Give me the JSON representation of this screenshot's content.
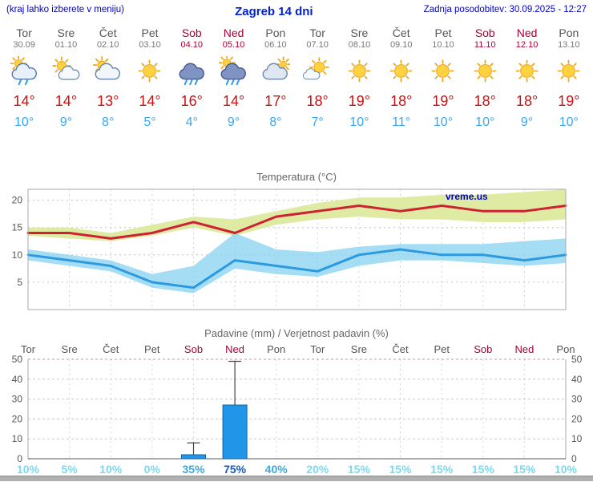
{
  "header": {
    "left_note": "(kraj lahko izberete v meniju)",
    "title": "Zagreb 14 dni",
    "updated_label": "Zadnja posodobitev: 30.09.2025 - 12:27"
  },
  "colors": {
    "link_blue": "#0000cc",
    "weekend_red": "#aa0033",
    "tmax_red": "#cc1111",
    "tmin_blue": "#3aa7f0",
    "line_red": "#cc2233",
    "line_blue": "#2d9ae0",
    "band_green": "#dce99b",
    "band_blue": "#86d2f0",
    "bar_blue": "#2196e8",
    "prob_low": "#7bd9ef",
    "prob_mid": "#3fa8dc",
    "prob_high": "#1559bb"
  },
  "days": [
    {
      "name": "Tor",
      "date": "30.09",
      "weekend": false,
      "icon": "light-rain",
      "tmax": "14°",
      "tmin": "10°"
    },
    {
      "name": "Sre",
      "date": "01.10",
      "weekend": false,
      "icon": "partly-cloudy",
      "tmax": "14°",
      "tmin": "9°"
    },
    {
      "name": "Čet",
      "date": "02.10",
      "weekend": false,
      "icon": "mostly-cloudy",
      "tmax": "13°",
      "tmin": "8°"
    },
    {
      "name": "Pet",
      "date": "03.10",
      "weekend": false,
      "icon": "sunny",
      "tmax": "14°",
      "tmin": "5°"
    },
    {
      "name": "Sob",
      "date": "04.10",
      "weekend": true,
      "icon": "rain",
      "tmax": "16°",
      "tmin": "4°"
    },
    {
      "name": "Ned",
      "date": "05.10",
      "weekend": true,
      "icon": "showers",
      "tmax": "14°",
      "tmin": "9°"
    },
    {
      "name": "Pon",
      "date": "06.10",
      "weekend": false,
      "icon": "cloudy",
      "tmax": "17°",
      "tmin": "8°"
    },
    {
      "name": "Tor",
      "date": "07.10",
      "weekend": false,
      "icon": "partly-sunny",
      "tmax": "18°",
      "tmin": "7°"
    },
    {
      "name": "Sre",
      "date": "08.10",
      "weekend": false,
      "icon": "sunny",
      "tmax": "19°",
      "tmin": "10°"
    },
    {
      "name": "Čet",
      "date": "09.10",
      "weekend": false,
      "icon": "sunny",
      "tmax": "18°",
      "tmin": "11°"
    },
    {
      "name": "Pet",
      "date": "10.10",
      "weekend": false,
      "icon": "sunny",
      "tmax": "19°",
      "tmin": "10°"
    },
    {
      "name": "Sob",
      "date": "11.10",
      "weekend": true,
      "icon": "sunny",
      "tmax": "18°",
      "tmin": "10°"
    },
    {
      "name": "Ned",
      "date": "12.10",
      "weekend": true,
      "icon": "sunny",
      "tmax": "18°",
      "tmin": "9°"
    },
    {
      "name": "Pon",
      "date": "13.10",
      "weekend": false,
      "icon": "sunny",
      "tmax": "19°",
      "tmin": "10°"
    }
  ],
  "chart_data": [
    {
      "type": "line",
      "title": "Temperatura (°C)",
      "watermark": "vreme.us",
      "x": [
        "Tor",
        "Sre",
        "Čet",
        "Pet",
        "Sob",
        "Ned",
        "Pon",
        "Tor",
        "Sre",
        "Čet",
        "Pet",
        "Sob",
        "Ned",
        "Pon"
      ],
      "ylim": [
        0,
        22
      ],
      "yticks": [
        5,
        10,
        15,
        20
      ],
      "grid": true,
      "series": [
        {
          "name": "tmax",
          "values": [
            14,
            14,
            13,
            14,
            16,
            14,
            17,
            18,
            19,
            18,
            19,
            18,
            18,
            19
          ]
        },
        {
          "name": "tmin",
          "values": [
            10,
            9,
            8,
            5,
            4,
            9,
            8,
            7,
            10,
            11,
            10,
            10,
            9,
            10
          ]
        },
        {
          "name": "tmax_range_high",
          "values": [
            15,
            15,
            14,
            15.5,
            17,
            16.5,
            18,
            19.5,
            20.5,
            20.5,
            21,
            21,
            21.5,
            22
          ]
        },
        {
          "name": "tmax_range_low",
          "values": [
            13.5,
            13,
            12.5,
            13.5,
            15,
            13.5,
            15.5,
            16.5,
            17,
            16.5,
            16.5,
            16,
            16,
            16.5
          ]
        },
        {
          "name": "tmin_range_high",
          "values": [
            11,
            10,
            9,
            6.5,
            8,
            14,
            11,
            10.5,
            11.5,
            12,
            12,
            12,
            12.5,
            13
          ]
        },
        {
          "name": "tmin_range_low",
          "values": [
            9,
            8,
            7,
            4,
            3,
            7.5,
            6.5,
            6,
            8,
            9,
            9,
            8.5,
            8,
            8.5
          ]
        }
      ]
    },
    {
      "type": "bar",
      "title": "Padavine (mm) / Verjetnost padavin (%)",
      "categories": [
        "Tor",
        "Sre",
        "Čet",
        "Pet",
        "Sob",
        "Ned",
        "Pon",
        "Tor",
        "Sre",
        "Čet",
        "Pet",
        "Sob",
        "Ned",
        "Pon"
      ],
      "weekend": [
        false,
        false,
        false,
        false,
        true,
        true,
        false,
        false,
        false,
        false,
        false,
        true,
        true,
        false
      ],
      "precip_mm": [
        0,
        0,
        0,
        0,
        2,
        27,
        0,
        0,
        0,
        0,
        0,
        0,
        0,
        0
      ],
      "precip_max_mm": [
        0,
        0,
        0,
        0,
        8,
        49,
        0,
        0,
        0,
        0,
        0,
        0,
        0,
        0
      ],
      "probability_pct": [
        10,
        5,
        10,
        0,
        35,
        75,
        40,
        20,
        15,
        15,
        15,
        15,
        15,
        10
      ],
      "ylim": [
        0,
        50
      ],
      "yticks": [
        0,
        10,
        20,
        30,
        40,
        50
      ],
      "grid": true
    }
  ]
}
